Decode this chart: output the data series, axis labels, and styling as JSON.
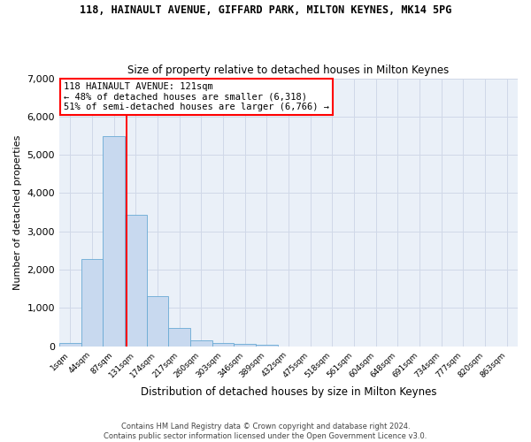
{
  "title1": "118, HAINAULT AVENUE, GIFFARD PARK, MILTON KEYNES, MK14 5PG",
  "title2": "Size of property relative to detached houses in Milton Keynes",
  "xlabel": "Distribution of detached houses by size in Milton Keynes",
  "ylabel": "Number of detached properties",
  "bar_color": "#c8d9ef",
  "bar_edge_color": "#6aaad4",
  "x_labels": [
    "1sqm",
    "44sqm",
    "87sqm",
    "131sqm",
    "174sqm",
    "217sqm",
    "260sqm",
    "303sqm",
    "346sqm",
    "389sqm",
    "432sqm",
    "475sqm",
    "518sqm",
    "561sqm",
    "604sqm",
    "648sqm",
    "691sqm",
    "734sqm",
    "777sqm",
    "820sqm",
    "863sqm"
  ],
  "bar_values": [
    75,
    2280,
    5480,
    3440,
    1310,
    470,
    160,
    85,
    55,
    35,
    0,
    0,
    0,
    0,
    0,
    0,
    0,
    0,
    0,
    0,
    0
  ],
  "ylim": [
    0,
    7000
  ],
  "yticks": [
    0,
    1000,
    2000,
    3000,
    4000,
    5000,
    6000,
    7000
  ],
  "vline_x": 2.57,
  "annotation_text": "118 HAINAULT AVENUE: 121sqm\n← 48% of detached houses are smaller (6,318)\n51% of semi-detached houses are larger (6,766) →",
  "annotation_box_color": "white",
  "annotation_box_edge": "red",
  "footer1": "Contains HM Land Registry data © Crown copyright and database right 2024.",
  "footer2": "Contains public sector information licensed under the Open Government Licence v3.0.",
  "grid_color": "#d0d8e8",
  "background_color": "#eaf0f8"
}
